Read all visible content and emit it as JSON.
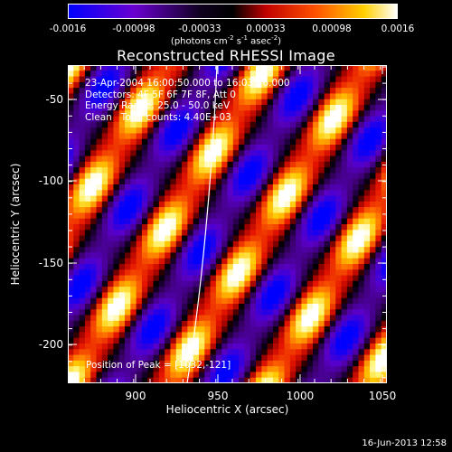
{
  "colorbar": {
    "tick_labels": [
      "-0.0016",
      "-0.00098",
      "-0.00033",
      "0.00033",
      "0.00098",
      "0.0016"
    ],
    "units_main": "(photons cm",
    "units_exp1": "-2",
    "units_mid1": " s",
    "units_exp2": "-1",
    "units_mid2": " asec",
    "units_exp3": "-2",
    "units_end": ")",
    "colors": [
      "#0000ff",
      "#7a00c0",
      "#000000",
      "#ff0000",
      "#ffb000",
      "#ffffff"
    ]
  },
  "plot": {
    "title": "Reconstructed RHESSI Image",
    "xlabel": "Heliocentric X (arcsec)",
    "ylabel": "Heliocentric Y (arcsec)",
    "xlim": [
      860,
      1050
    ],
    "ylim": [
      -225,
      -30
    ],
    "xticks": [
      "900",
      "950",
      "1000",
      "1050"
    ],
    "yticks": [
      "-50",
      "-100",
      "-150",
      "-200"
    ],
    "info_lines": [
      "23-Apr-2004 16:00:50.000 to 16:03:56.000",
      "Detectors: 4F 5F 6F 7F 8F, Att 0",
      "Energy Range: 25.0 - 50.0 keV",
      "Clean   Total counts: 4.40E+03"
    ],
    "peak_label": "Position of Peak = [1032,-121]"
  },
  "footer": {
    "timestamp": "16-Jun-2013 12:58"
  }
}
